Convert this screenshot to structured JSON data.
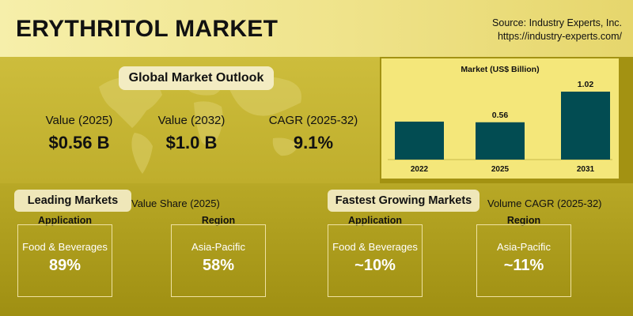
{
  "header": {
    "title": "ERYTHRITOL MARKET",
    "source_line1": "Source: Industry Experts, Inc.",
    "source_line2": "https://industry-experts.com/"
  },
  "outlook": {
    "title": "Global Market Outlook",
    "kpis": [
      {
        "label": "Value (2025)",
        "value": "$0.56 B"
      },
      {
        "label": "Value (2032)",
        "value": "$1.0 B"
      },
      {
        "label": "CAGR (2025-32)",
        "value": "9.1%"
      }
    ]
  },
  "chart_data": {
    "type": "bar",
    "title": "Market  (US$ Billion)",
    "categories": [
      "2022",
      "2025",
      "2031"
    ],
    "values": [
      null,
      0.56,
      1.02
    ],
    "value_labels": [
      "",
      "0.56",
      "1.02"
    ],
    "bar_color": "#024c52",
    "background_color": "#f4e77a"
  },
  "leading": {
    "title": "Leading Markets",
    "subtitle": "Value Share (2025)",
    "cards": [
      {
        "head": "Application",
        "label": "Food & Beverages",
        "value": "89%"
      },
      {
        "head": "Region",
        "label": "Asia-Pacific",
        "value": "58%"
      }
    ]
  },
  "fastest": {
    "title": "Fastest Growing Markets",
    "subtitle": "Volume CAGR (2025-32)",
    "cards": [
      {
        "head": "Application",
        "label": "Food & Beverages",
        "value": "~10%"
      },
      {
        "head": "Region",
        "label": "Asia-Pacific",
        "value": "~11%"
      }
    ]
  }
}
